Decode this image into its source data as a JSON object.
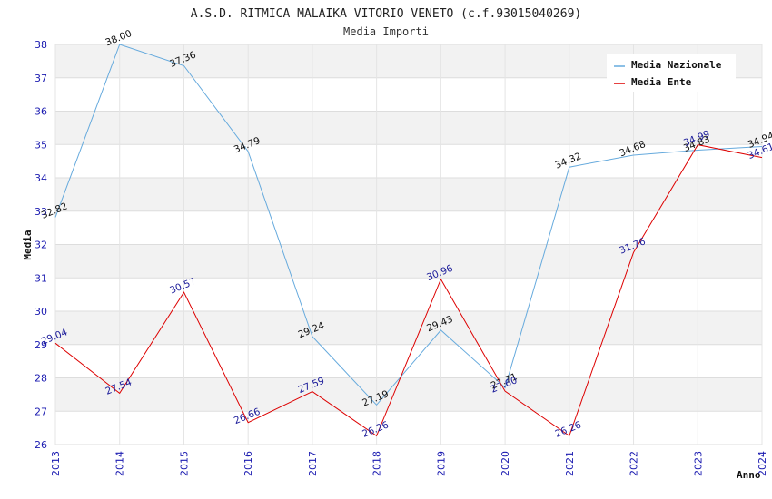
{
  "chart_data": {
    "type": "line",
    "title": "A.S.D. RITMICA MALAIKA VITORIO VENETO (c.f.93015040269)",
    "subtitle": "Media Importi",
    "xlabel": "Anno",
    "ylabel": "Media",
    "ylim": [
      26,
      38
    ],
    "yticks": [
      "26",
      "27",
      "28",
      "29",
      "30",
      "31",
      "32",
      "33",
      "34",
      "35",
      "36",
      "37",
      "38"
    ],
    "categories": [
      "2013",
      "2014",
      "2015",
      "2016",
      "2017",
      "2018",
      "2019",
      "2020",
      "2021",
      "2022",
      "2023",
      "2024"
    ],
    "grid": true,
    "legend_position": "top-right",
    "series": [
      {
        "name": "Media Nazionale",
        "color": "#66aadd",
        "label_color": "#111111",
        "values": [
          32.82,
          38.0,
          37.36,
          34.79,
          29.24,
          27.19,
          29.43,
          27.71,
          34.32,
          34.68,
          34.83,
          34.94
        ],
        "labels": [
          "32.82",
          "38.00",
          "37.36",
          "34.79",
          "29.24",
          "27.19",
          "29.43",
          "27.71",
          "34.32",
          "34.68",
          "34.83",
          "34.94"
        ]
      },
      {
        "name": "Media Ente",
        "color": "#dd0000",
        "label_color": "#1a1a99",
        "values": [
          29.04,
          27.54,
          30.57,
          26.66,
          27.59,
          26.26,
          30.96,
          27.6,
          26.26,
          31.76,
          34.99,
          34.61
        ],
        "labels": [
          "29.04",
          "27.54",
          "30.57",
          "26.66",
          "27.59",
          "26.26",
          "30.96",
          "27.60",
          "26.26",
          "31.76",
          "34.99",
          "34.61"
        ]
      }
    ]
  }
}
